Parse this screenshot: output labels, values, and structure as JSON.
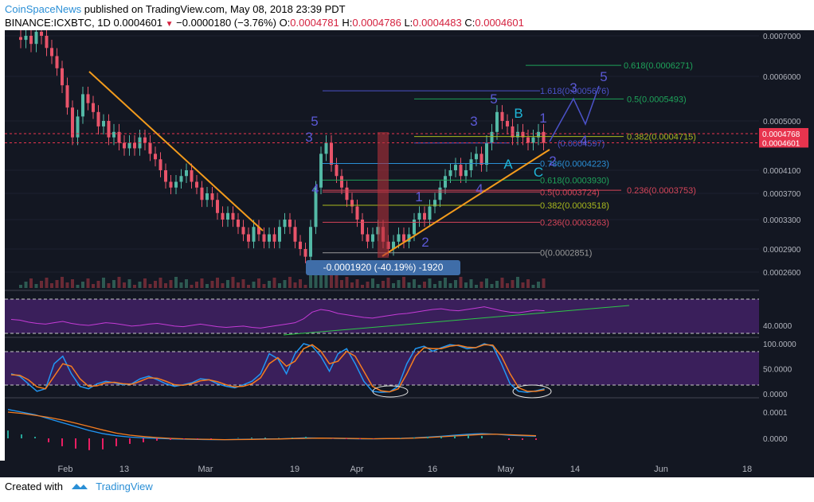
{
  "header": {
    "author": "CoinSpaceNews",
    "published_text": "published on TradingView.com, May 08, 2018 23:39 PDT",
    "symbol": "BINANCE:ICXBTC, 1D",
    "last": "0.0004601",
    "change": "−0.0000180 (−3.76%)",
    "o_label": "O:",
    "o_value": "0.0004781",
    "h_label": "H:",
    "h_value": "0.0004786",
    "l_label": "L:",
    "l_value": "0.0004483",
    "c_label": "C:",
    "c_value": "0.0004601"
  },
  "footer": {
    "created_with": "Created with",
    "brand": "TradingView"
  },
  "colors": {
    "up": "#53b9a6",
    "down": "#e8546a",
    "fib_green": "#1ea35a",
    "fib_yellow": "#a8b81d",
    "fib_red": "#d6455a",
    "fib_blue": "#4b52c9",
    "wave": "#5b59d6",
    "trend": "#f39b1c",
    "rsi_band": "#3a1f5b"
  },
  "chart_data": [
    {
      "type": "candlestick",
      "panel": "price",
      "ylim": [
        0.00023,
        0.00071
      ],
      "y_ticks": [
        "0.0007000",
        "0.0006000",
        "0.0005000",
        "0.0004100",
        "0.0003700",
        "0.0003300",
        "0.0002900",
        "0.0002600"
      ],
      "y_tick_values": [
        0.0007,
        0.0006,
        0.0005,
        0.00041,
        0.00037,
        0.00033,
        0.00029,
        0.00026
      ],
      "price_labels": [
        {
          "text": "0.0004768",
          "value": 0.0004768,
          "color": "#e8344e"
        },
        {
          "text": "0.0004601",
          "value": 0.0004601,
          "color": "#e8344e"
        }
      ],
      "x_labels": [
        "Feb",
        "13",
        "Mar",
        "19",
        "Apr",
        "16",
        "May",
        "14",
        "Jun",
        "18"
      ],
      "closes": [
        0.00069,
        0.0007,
        0.00068,
        0.00071,
        0.0007,
        0.00067,
        0.00065,
        0.00062,
        0.00058,
        0.00053,
        0.00047,
        0.00051,
        0.00056,
        0.00054,
        0.00052,
        0.00049,
        0.0005,
        0.00047,
        0.00048,
        0.00046,
        0.00045,
        0.00046,
        0.00045,
        0.00047,
        0.00046,
        0.00044,
        0.00043,
        0.00041,
        0.00039,
        0.00038,
        0.00039,
        0.0004,
        0.00041,
        0.00039,
        0.00038,
        0.00036,
        0.00037,
        0.00036,
        0.00034,
        0.00033,
        0.00034,
        0.00033,
        0.00032,
        0.00031,
        0.0003,
        0.00032,
        0.00031,
        0.0003,
        0.00031,
        0.0003,
        0.00032,
        0.00033,
        0.00032,
        0.0003,
        0.00029,
        0.00028,
        0.00032,
        0.00038,
        0.00044,
        0.00046,
        0.00042,
        0.0004,
        0.00038,
        0.00036,
        0.00035,
        0.00033,
        0.00031,
        0.0003,
        0.00031,
        0.00032,
        0.0003,
        0.00029,
        0.0003,
        0.00031,
        0.0003,
        0.00031,
        0.00033,
        0.00034,
        0.00033,
        0.00035,
        0.00036,
        0.00038,
        0.0004,
        0.00041,
        0.00042,
        0.0004,
        0.00041,
        0.00043,
        0.00044,
        0.00042,
        0.00046,
        0.00048,
        0.00052,
        0.0005,
        0.00049,
        0.00047,
        0.00048,
        0.00047,
        0.00046,
        0.00047,
        0.00048,
        0.00046
      ],
      "fib_levels": [
        {
          "text": "0.618(0.0006271)",
          "value": 0.0006271,
          "color": "#1ea35a"
        },
        {
          "text": "1.618(0.0005676)",
          "value": 0.0005676,
          "color": "#4b52c9"
        },
        {
          "text": "0.5(0.0005493)",
          "value": 0.0005493,
          "color": "#1ea35a"
        },
        {
          "text": "0.382(0.0004715)",
          "value": 0.0004715,
          "color": "#a8b81d"
        },
        {
          "text": "(0.0004597)",
          "value": 0.0004597,
          "color": "#4b52c9"
        },
        {
          "text": "0.786(0.0004223)",
          "value": 0.0004223,
          "color": "#2a8fd6"
        },
        {
          "text": "0.618(0.0003930)",
          "value": 0.000393,
          "color": "#1ea35a"
        },
        {
          "text": "0.236(0.0003753)",
          "value": 0.0003753,
          "color": "#d6455a"
        },
        {
          "text": "0.5(0.0003724)",
          "value": 0.0003724,
          "color": "#d6455a"
        },
        {
          "text": "0.382(0.0003518)",
          "value": 0.0003518,
          "color": "#a8b81d"
        },
        {
          "text": "0.236(0.0003263)",
          "value": 0.0003263,
          "color": "#d6455a"
        },
        {
          "text": "0(0.0002851)",
          "value": 0.0002851,
          "color": "#9a9a9a"
        }
      ],
      "annotations": [
        {
          "text": "5",
          "color": "#5b59d6"
        },
        {
          "text": "3",
          "color": "#5b59d6"
        },
        {
          "text": "4",
          "color": "#5b59d6"
        },
        {
          "text": "1",
          "color": "#5b59d6"
        },
        {
          "text": "2",
          "color": "#5b59d6"
        },
        {
          "text": "3",
          "color": "#5b59d6"
        },
        {
          "text": "4",
          "color": "#5b59d6"
        },
        {
          "text": "5",
          "color": "#5b59d6"
        },
        {
          "text": "B",
          "color": "#1fb6d8"
        },
        {
          "text": "A",
          "color": "#1fb6d8"
        },
        {
          "text": "C",
          "color": "#1fb6d8"
        },
        {
          "text": "1",
          "color": "#5b59d6"
        },
        {
          "text": "2",
          "color": "#5b59d6"
        },
        {
          "text": "3",
          "color": "#5b59d6"
        },
        {
          "text": "4",
          "color": "#5b59d6"
        },
        {
          "text": "5",
          "color": "#5b59d6"
        }
      ],
      "measure_label": "-0.0001920 (-40.19%) -1920"
    },
    {
      "type": "line",
      "panel": "rsi",
      "y_ticks": [
        "40.0000"
      ],
      "values": [
        47,
        46,
        43,
        41,
        40,
        42,
        44,
        41,
        39,
        38,
        40,
        42,
        41,
        39,
        37,
        38,
        40,
        41,
        39,
        37,
        36,
        38,
        40,
        38,
        36,
        35,
        36,
        37,
        35,
        34,
        36,
        38,
        40,
        42,
        48,
        58,
        62,
        60,
        56,
        54,
        52,
        50,
        49,
        51,
        53,
        55,
        56,
        58,
        60,
        62,
        63,
        61,
        60,
        62,
        64,
        66,
        63,
        60,
        58,
        57,
        59,
        61,
        60
      ]
    },
    {
      "type": "line",
      "panel": "stoch-rsi",
      "y_ticks": [
        "100.0000",
        "50.0000",
        "0.0000"
      ],
      "series": [
        {
          "values": [
            40,
            35,
            20,
            5,
            10,
            60,
            75,
            40,
            15,
            10,
            20,
            25,
            22,
            18,
            20,
            30,
            35,
            28,
            20,
            15,
            18,
            22,
            30,
            28,
            20,
            15,
            12,
            18,
            25,
            40,
            80,
            70,
            40,
            80,
            100,
            95,
            75,
            45,
            80,
            90,
            60,
            25,
            5,
            3,
            4,
            15,
            60,
            90,
            95,
            85,
            92,
            98,
            96,
            90,
            92,
            100,
            95,
            60,
            20,
            5,
            3,
            6,
            10
          ]
        },
        {
          "values": [
            38,
            37,
            28,
            14,
            10,
            35,
            60,
            55,
            30,
            15,
            16,
            22,
            23,
            20,
            19,
            25,
            32,
            31,
            25,
            18,
            17,
            20,
            26,
            28,
            24,
            18,
            14,
            15,
            20,
            32,
            60,
            72,
            55,
            65,
            90,
            98,
            85,
            60,
            65,
            85,
            75,
            45,
            15,
            6,
            4,
            10,
            40,
            75,
            92,
            90,
            90,
            95,
            97,
            93,
            92,
            98,
            97,
            75,
            40,
            12,
            5,
            5,
            8
          ]
        }
      ]
    },
    {
      "type": "line",
      "panel": "macd",
      "y_ticks": [
        "0.0001",
        "0.0000"
      ],
      "series": [
        {
          "values": [
            1.1,
            1.0,
            0.9,
            0.75,
            0.6,
            0.45,
            0.3,
            0.18,
            0.1,
            0.05,
            0.02,
            0.0,
            -0.02,
            -0.03,
            -0.04,
            -0.05,
            -0.05,
            -0.04,
            -0.03,
            -0.02,
            -0.02,
            0.0,
            0.02,
            0.01,
            0.0,
            -0.01,
            -0.02,
            -0.02,
            -0.01,
            0.0,
            0.02,
            0.05,
            0.08,
            0.12,
            0.16,
            0.18,
            0.16,
            0.12,
            0.1,
            0.08
          ]
        },
        {
          "values": [
            1.0,
            0.95,
            0.88,
            0.8,
            0.7,
            0.58,
            0.45,
            0.32,
            0.2,
            0.12,
            0.07,
            0.03,
            0.0,
            -0.02,
            -0.03,
            -0.04,
            -0.05,
            -0.045,
            -0.04,
            -0.03,
            -0.025,
            -0.01,
            0.0,
            0.01,
            0.005,
            0.0,
            -0.01,
            -0.015,
            -0.01,
            -0.005,
            0.01,
            0.03,
            0.06,
            0.09,
            0.12,
            0.15,
            0.16,
            0.14,
            0.12,
            0.1
          ]
        }
      ]
    }
  ]
}
